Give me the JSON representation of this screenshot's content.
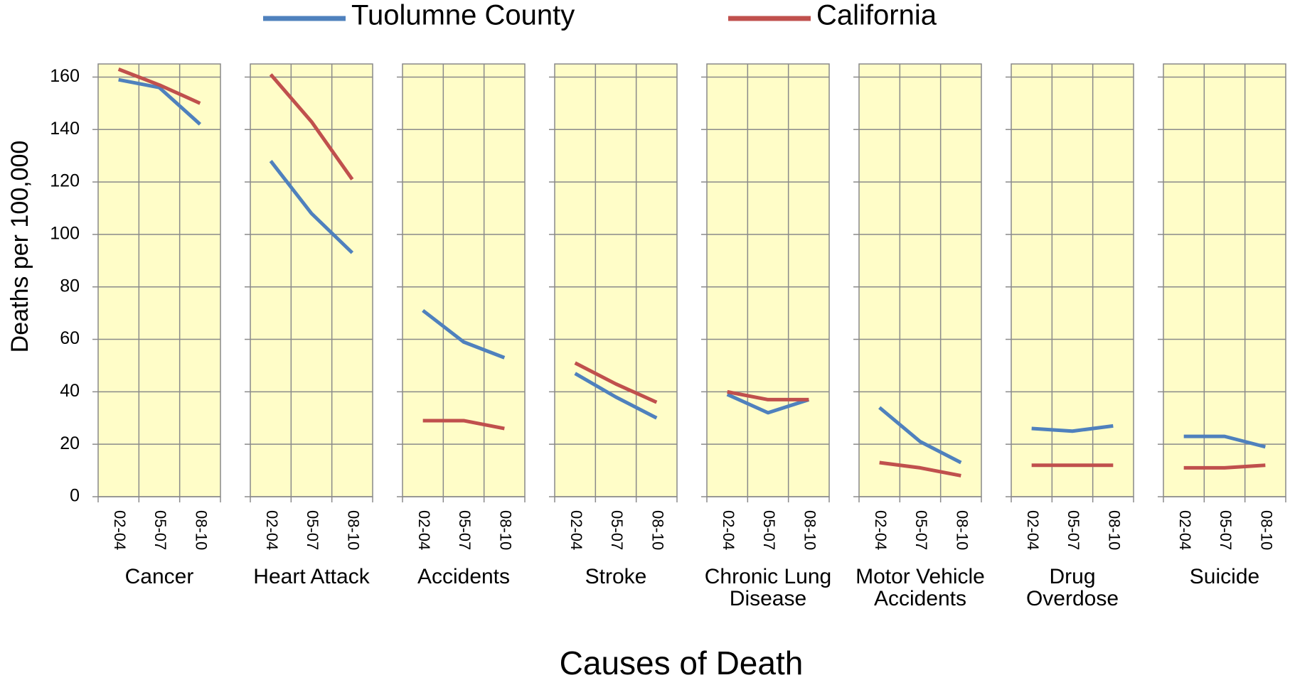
{
  "y_axis_title": "Deaths per 100,000",
  "x_axis_title": "Causes of Death",
  "chart_data": [
    {
      "type": "line",
      "title": "Cancer",
      "categories": [
        "02-04",
        "05-07",
        "08-10"
      ],
      "ylim": [
        0,
        165
      ],
      "yticks": [
        0,
        20,
        40,
        60,
        80,
        100,
        120,
        140,
        160
      ],
      "grid": true,
      "background": "#fffdc8",
      "series": [
        {
          "name": "Tuolumne County",
          "color": "#4f81bd",
          "values": [
            159,
            156,
            142
          ]
        },
        {
          "name": "California",
          "color": "#c0504d",
          "values": [
            163,
            157,
            150
          ]
        }
      ]
    },
    {
      "type": "line",
      "title": "Heart Attack",
      "categories": [
        "02-04",
        "05-07",
        "08-10"
      ],
      "ylim": [
        0,
        165
      ],
      "yticks": [
        0,
        20,
        40,
        60,
        80,
        100,
        120,
        140,
        160
      ],
      "grid": true,
      "background": "#fffdc8",
      "series": [
        {
          "name": "Tuolumne County",
          "color": "#4f81bd",
          "values": [
            128,
            108,
            93
          ]
        },
        {
          "name": "California",
          "color": "#c0504d",
          "values": [
            161,
            143,
            121
          ]
        }
      ]
    },
    {
      "type": "line",
      "title": "Accidents",
      "categories": [
        "02-04",
        "05-07",
        "08-10"
      ],
      "ylim": [
        0,
        165
      ],
      "yticks": [
        0,
        20,
        40,
        60,
        80,
        100,
        120,
        140,
        160
      ],
      "grid": true,
      "background": "#fffdc8",
      "series": [
        {
          "name": "Tuolumne County",
          "color": "#4f81bd",
          "values": [
            71,
            59,
            53
          ]
        },
        {
          "name": "California",
          "color": "#c0504d",
          "values": [
            29,
            29,
            26
          ]
        }
      ]
    },
    {
      "type": "line",
      "title": "Stroke",
      "categories": [
        "02-04",
        "05-07",
        "08-10"
      ],
      "ylim": [
        0,
        165
      ],
      "yticks": [
        0,
        20,
        40,
        60,
        80,
        100,
        120,
        140,
        160
      ],
      "grid": true,
      "background": "#fffdc8",
      "series": [
        {
          "name": "Tuolumne County",
          "color": "#4f81bd",
          "values": [
            47,
            38,
            30
          ]
        },
        {
          "name": "California",
          "color": "#c0504d",
          "values": [
            51,
            43,
            36
          ]
        }
      ]
    },
    {
      "type": "line",
      "title": "Chronic Lung Disease",
      "categories": [
        "02-04",
        "05-07",
        "08-10"
      ],
      "ylim": [
        0,
        165
      ],
      "yticks": [
        0,
        20,
        40,
        60,
        80,
        100,
        120,
        140,
        160
      ],
      "grid": true,
      "background": "#fffdc8",
      "series": [
        {
          "name": "Tuolumne County",
          "color": "#4f81bd",
          "values": [
            39,
            32,
            37
          ]
        },
        {
          "name": "California",
          "color": "#c0504d",
          "values": [
            40,
            37,
            37
          ]
        }
      ]
    },
    {
      "type": "line",
      "title": "Motor Vehicle Accidents",
      "categories": [
        "02-04",
        "05-07",
        "08-10"
      ],
      "ylim": [
        0,
        165
      ],
      "yticks": [
        0,
        20,
        40,
        60,
        80,
        100,
        120,
        140,
        160
      ],
      "grid": true,
      "background": "#fffdc8",
      "series": [
        {
          "name": "Tuolumne County",
          "color": "#4f81bd",
          "values": [
            34,
            21,
            13
          ]
        },
        {
          "name": "California",
          "color": "#c0504d",
          "values": [
            13,
            11,
            8
          ]
        }
      ]
    },
    {
      "type": "line",
      "title": "Drug Overdose",
      "categories": [
        "02-04",
        "05-07",
        "08-10"
      ],
      "ylim": [
        0,
        165
      ],
      "yticks": [
        0,
        20,
        40,
        60,
        80,
        100,
        120,
        140,
        160
      ],
      "grid": true,
      "background": "#fffdc8",
      "series": [
        {
          "name": "Tuolumne County",
          "color": "#4f81bd",
          "values": [
            26,
            25,
            27
          ]
        },
        {
          "name": "California",
          "color": "#c0504d",
          "values": [
            12,
            12,
            12
          ]
        }
      ]
    },
    {
      "type": "line",
      "title": "Suicide",
      "categories": [
        "02-04",
        "05-07",
        "08-10"
      ],
      "ylim": [
        0,
        165
      ],
      "yticks": [
        0,
        20,
        40,
        60,
        80,
        100,
        120,
        140,
        160
      ],
      "grid": true,
      "background": "#fffdc8",
      "series": [
        {
          "name": "Tuolumne County",
          "color": "#4f81bd",
          "values": [
            23,
            23,
            19
          ]
        },
        {
          "name": "California",
          "color": "#c0504d",
          "values": [
            11,
            11,
            12
          ]
        }
      ]
    }
  ]
}
